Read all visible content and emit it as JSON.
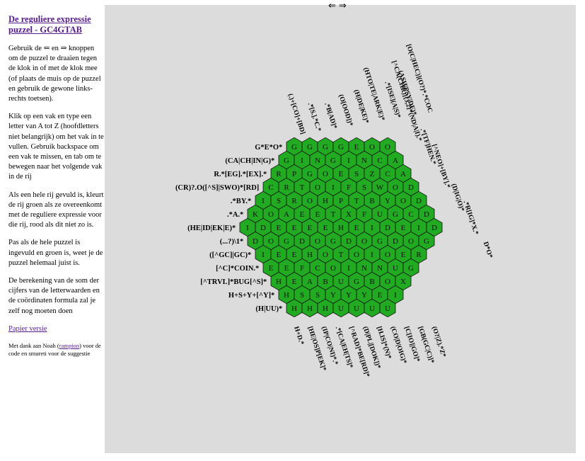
{
  "sidebar": {
    "title": "De reguliere expressie puzzel - GC4GTAB",
    "p1_a": "Gebruik de",
    "p1_left": "⇐",
    "p1_en": "en",
    "p1_right": "⇒",
    "p1_b": "knoppen om de puzzel te draaien tegen de klok in of met de klok mee (of plaats de muis op de puzzel en gebruik de gewone links-rechts toetsen).",
    "p2": "Klik op een vak en type een letter van A tot Z (hoofdletters niet belangrijk) om het vak in te vullen. Gebruik backspace om een vak te missen, en tab om te bewegen naar het volgende vak in de rij",
    "p3": "Als een hele rij gevuld is, kleurt de rij groen als ze overeenkomt met de reguliere expressie voor die rij, rood als dit niet zo is.",
    "p4": "Pas als de hele puzzel is ingevuld en groen is, weet je de puzzel helemaal juist is.",
    "p5": "De berekening van de som der cijfers van de letterwaarden en de coördinaten formula zal je zelf nog moeten doen",
    "paper_link": "Papier versie",
    "credits_a": "Met dank aan Noah (",
    "credits_link": "rampion",
    "credits_b": ") voor de code en smureti voor de suggestie"
  },
  "nav": {
    "left": "⇐",
    "right": "⇒"
  },
  "colors": {
    "cell_fill": "#22aa22",
    "cell_stroke": "#111111",
    "board_bg": "#dcdcdc"
  },
  "puzzle": {
    "rows": [
      {
        "clue": "G*E*O*",
        "letters": "GGGGEOO"
      },
      {
        "clue": "(CA|CH|IN|G)*",
        "letters": "GINGINCA"
      },
      {
        "clue": "R.*[EG].*[EX].*",
        "letters": "RPGOESZCA"
      },
      {
        "clue": "(CR)?.O([^S]|SWO)*[RD]",
        "letters": "CRTOIFSWOD"
      },
      {
        "clue": ".*BY.*",
        "letters": "ISROHPTBYOD"
      },
      {
        "clue": ".*A.*",
        "letters": "KOAEETXFUGCD"
      },
      {
        "clue": "(HE|ID|EK|E)*",
        "letters": "IDEEEEHEIDEID"
      },
      {
        "clue": "(...?)\\1*",
        "letters": "DOGDOGDOGDOG"
      },
      {
        "clue": "([^GC]|GC)*",
        "letters": "IEEHOTOIOER"
      },
      {
        "clue": "[^C]*COIN.*",
        "letters": "EEFCOINNUG"
      },
      {
        "clue": "[^TRVL]*BUG[^S]*",
        "letters": "HEABUGBOX"
      },
      {
        "clue": "H+S+Y+[^Y]*",
        "letters": "HSSYYYEI"
      },
      {
        "clue": "(H|UU)*",
        "letters": "HHHUUUU"
      }
    ],
    "top_clues": [
      "(.)+[CO]+[BD]",
      ".*[S.].*C.*",
      ".*B[AD]*",
      "(O[OOD])*",
      "(H|DE|KE)*",
      "(HTO|TE|ARK|E)*",
      ".*[ISE](A|S)*",
      "(ASH|PSY|DE)*",
      "[O(C|HEC)](O?)*.*COC"
    ],
    "right_clues": [
      "[^CA(CHR)]{3,2}*(ND|A|I).*",
      ".*[TF]HEN.*",
      "[^NEO]+[BY].*",
      "(D|IG|O)*",
      ".*R[IG]*X.*",
      "D*O*"
    ],
    "bottom_clues": [
      "H+D.*",
      "[HE|OS]P[EK]*",
      "(IP|CO|NI)*.*",
      ".*[CA|EH|TS]*",
      "[^RAD]*BE[RD]*",
      "(D|PL|[DOK])*",
      "[H.IS]*(N)*",
      "(CO|D|OIG)*",
      "[C[IO]|GO]*",
      "[GB(GC|C)]*",
      "(O?|Z).*Z*"
    ]
  }
}
